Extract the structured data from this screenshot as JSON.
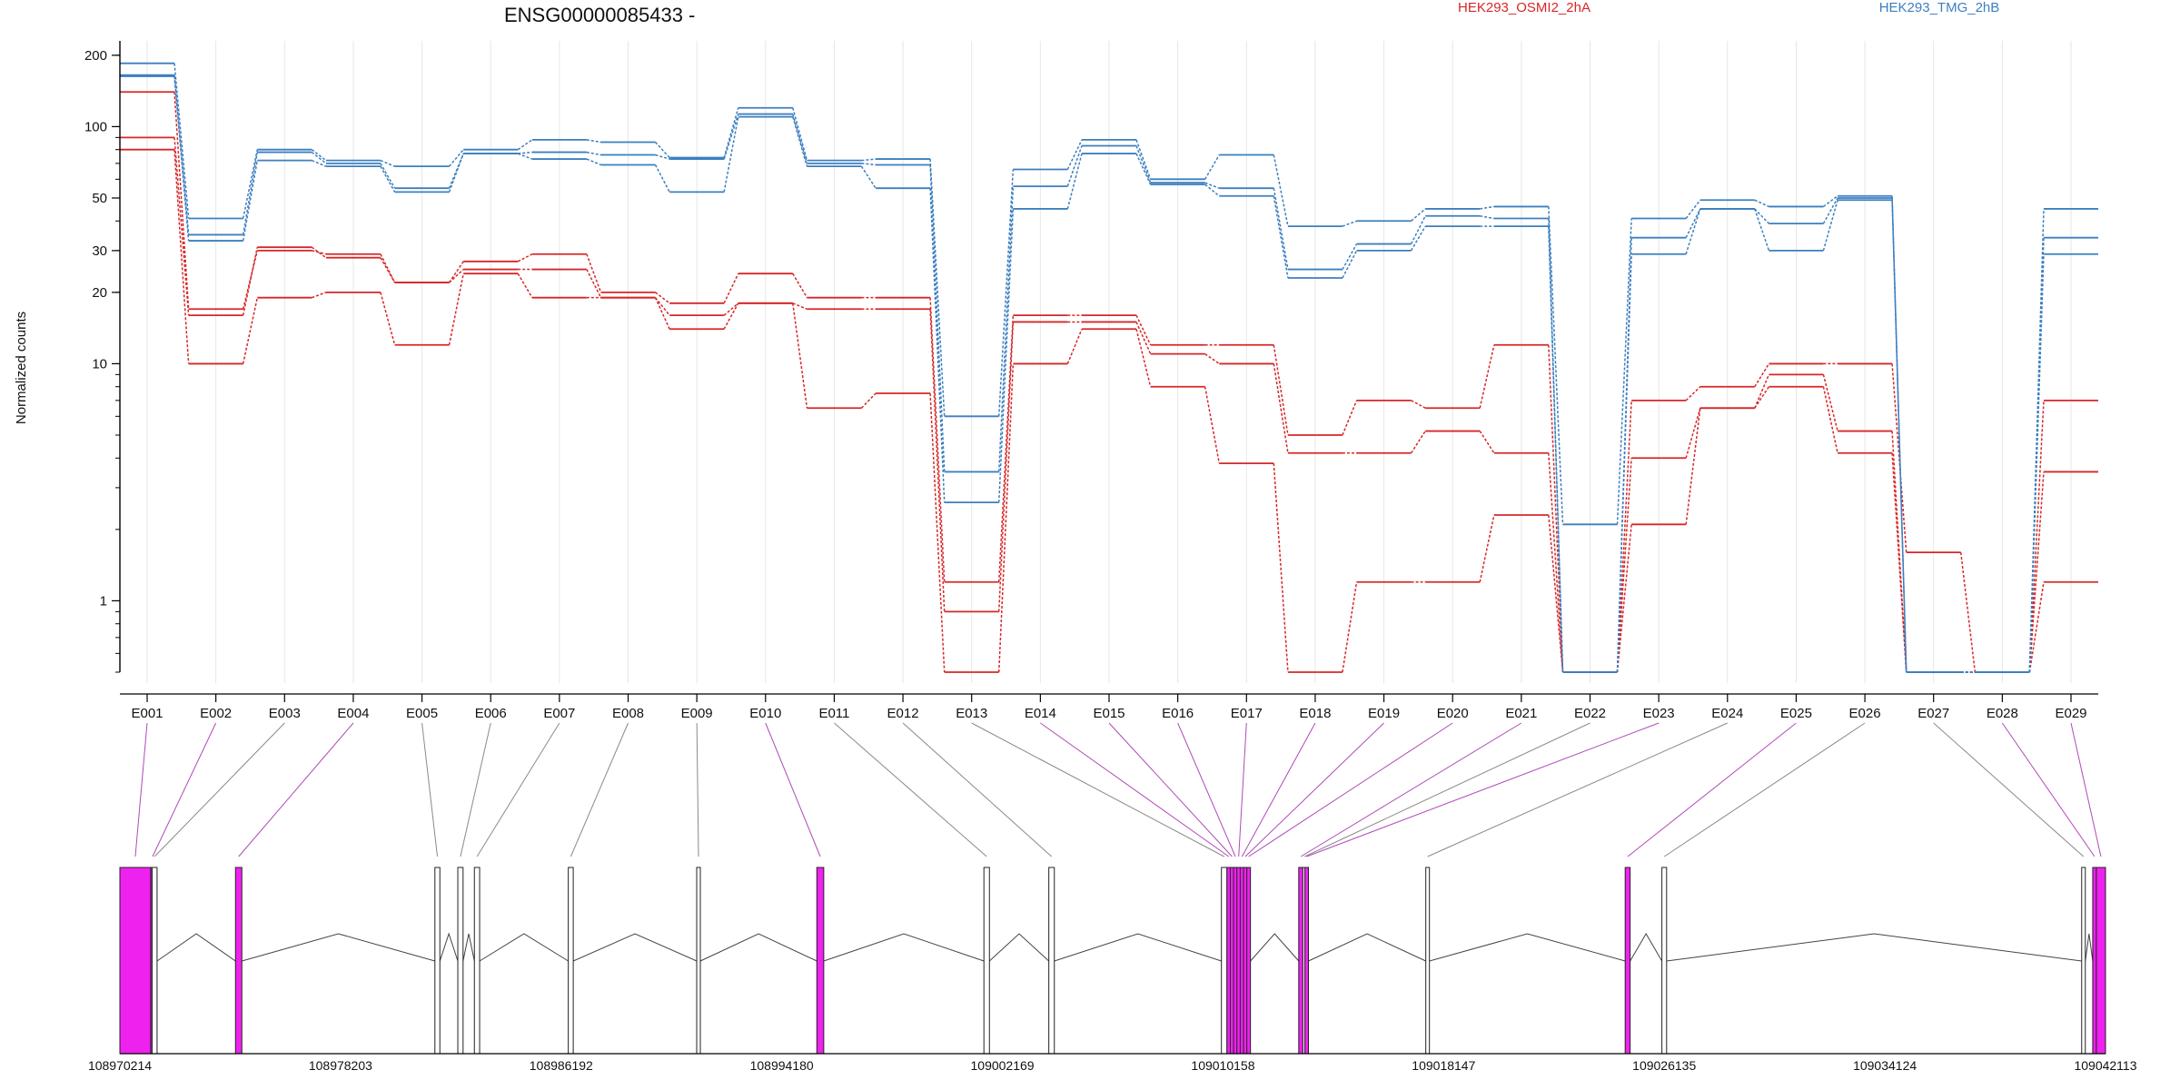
{
  "chart_data": {
    "type": "line",
    "title": "ENSG00000085433 -",
    "ylabel": "Normalized counts",
    "y_scale": "log",
    "ylim": [
      0.5,
      230
    ],
    "yticks": [
      1,
      10,
      20,
      30,
      50,
      100,
      200
    ],
    "ytick_labels": [
      "1",
      "10",
      "20",
      "30",
      "50",
      "100",
      "200"
    ],
    "grid": "vertical lines at each exon",
    "legend_position": "top-right",
    "categories": [
      "E001",
      "E002",
      "E003",
      "E004",
      "E005",
      "E006",
      "E007",
      "E008",
      "E009",
      "E010",
      "E011",
      "E012",
      "E013",
      "E014",
      "E015",
      "E016",
      "E017",
      "E018",
      "E019",
      "E020",
      "E021",
      "E022",
      "E023",
      "E024",
      "E025",
      "E026",
      "E027",
      "E028",
      "E029"
    ],
    "series": [
      {
        "name": "HEK293_OSMI2_2hA",
        "color": "#d62728",
        "values": [
          140,
          17,
          30,
          29,
          22,
          27,
          29,
          20,
          18,
          24,
          19,
          19,
          1.2,
          16,
          16,
          12,
          12,
          5,
          7,
          6.5,
          12,
          0.5,
          7,
          8,
          10,
          10,
          1.6,
          0.5,
          7
        ]
      },
      {
        "name": "HEK293_OSMI2_2hA",
        "color": "#d62728",
        "values": [
          90,
          16,
          31,
          28,
          22,
          25,
          25,
          19,
          16,
          18,
          17,
          17,
          0.9,
          15,
          15,
          11,
          10,
          4.2,
          4.2,
          5.2,
          4.2,
          0.5,
          4,
          6.5,
          9,
          5.2,
          0.5,
          0.5,
          3.5
        ]
      },
      {
        "name": "HEK293_OSMI2_2hA",
        "color": "#d62728",
        "values": [
          80,
          10,
          19,
          20,
          12,
          24,
          19,
          19,
          14,
          18,
          6.5,
          7.5,
          0.5,
          10,
          14,
          8,
          3.8,
          0.5,
          1.2,
          1.2,
          2.3,
          0.5,
          2.1,
          6.5,
          8,
          4.2,
          0.5,
          0.5,
          1.2
        ]
      },
      {
        "name": "HEK293_TMG_2hB",
        "color": "#3c7fbf",
        "values": [
          185,
          41,
          80,
          72,
          68,
          80,
          88,
          86,
          74,
          120,
          72,
          73,
          6,
          66,
          88,
          60,
          76,
          38,
          40,
          45,
          46,
          2.1,
          41,
          49,
          46,
          51,
          0.5,
          0.5,
          45
        ]
      },
      {
        "name": "HEK293_TMG_2hB",
        "color": "#3c7fbf",
        "values": [
          165,
          35,
          78,
          70,
          55,
          77,
          78,
          76,
          73,
          113,
          70,
          69,
          3.5,
          56,
          83,
          58,
          55,
          25,
          32,
          42,
          41,
          0.5,
          34,
          45,
          39,
          50,
          0.5,
          0.5,
          34
        ]
      },
      {
        "name": "HEK293_TMG_2hB",
        "color": "#3c7fbf",
        "values": [
          163,
          33,
          72,
          68,
          53,
          77,
          73,
          69,
          53,
          110,
          68,
          55,
          2.6,
          45,
          77,
          57,
          51,
          23,
          30,
          38,
          38,
          0.5,
          29,
          45,
          30,
          49,
          0.5,
          0.5,
          29
        ]
      }
    ],
    "legend": [
      {
        "label": "HEK293_OSMI2_2hA",
        "color": "#d62728"
      },
      {
        "label": "HEK293_TMG_2hB",
        "color": "#3c7fbf"
      }
    ],
    "gene_model": {
      "coord_range": [
        108970214,
        109042113
      ],
      "coord_ticks": [
        108970214,
        108978203,
        108986192,
        108994180,
        109002169,
        109010158,
        109018147,
        109026135,
        109034124,
        109042113
      ],
      "coord_tick_labels": [
        "108970214",
        "108978203",
        "108986192",
        "108994180",
        "109002169",
        "109010158",
        "109018147",
        "109026135",
        "109034124",
        "109042113"
      ],
      "highlight_color": "#ee22ee",
      "exons": [
        {
          "id": "E001",
          "start": 108970214,
          "end": 108971330,
          "highlight": true
        },
        {
          "id": "E002",
          "start": 108971330,
          "end": 108971380,
          "highlight": true
        },
        {
          "id": "E003",
          "start": 108971380,
          "end": 108971560,
          "highlight": false
        },
        {
          "id": "E004",
          "start": 108974400,
          "end": 108974630,
          "highlight": true
        },
        {
          "id": "E005",
          "start": 108981620,
          "end": 108981800,
          "highlight": false
        },
        {
          "id": "E006",
          "start": 108982450,
          "end": 108982640,
          "highlight": false
        },
        {
          "id": "E007",
          "start": 108983050,
          "end": 108983240,
          "highlight": false
        },
        {
          "id": "E008",
          "start": 108986450,
          "end": 108986630,
          "highlight": false
        },
        {
          "id": "E009",
          "start": 108991100,
          "end": 108991200,
          "highlight": false
        },
        {
          "id": "E010",
          "start": 108995450,
          "end": 108995700,
          "highlight": true
        },
        {
          "id": "E011",
          "start": 109001500,
          "end": 109001700,
          "highlight": false
        },
        {
          "id": "E012",
          "start": 109003850,
          "end": 109004050,
          "highlight": false
        },
        {
          "id": "E013",
          "start": 109010100,
          "end": 109010300,
          "highlight": false
        },
        {
          "id": "E014",
          "start": 109010300,
          "end": 109010420,
          "highlight": true
        },
        {
          "id": "E015",
          "start": 109010420,
          "end": 109010540,
          "highlight": true
        },
        {
          "id": "E016",
          "start": 109010540,
          "end": 109010660,
          "highlight": true
        },
        {
          "id": "E017",
          "start": 109010660,
          "end": 109010780,
          "highlight": true
        },
        {
          "id": "E018",
          "start": 109010780,
          "end": 109010900,
          "highlight": true
        },
        {
          "id": "E019",
          "start": 109010900,
          "end": 109011020,
          "highlight": true
        },
        {
          "id": "E020",
          "start": 109011020,
          "end": 109011140,
          "highlight": true
        },
        {
          "id": "E021",
          "start": 109012900,
          "end": 109013050,
          "highlight": true
        },
        {
          "id": "E022",
          "start": 109013050,
          "end": 109013120,
          "highlight": false
        },
        {
          "id": "E023",
          "start": 109013120,
          "end": 109013200,
          "highlight": true
        },
        {
          "id": "E024",
          "start": 109017500,
          "end": 109017600,
          "highlight": false
        },
        {
          "id": "E025",
          "start": 109024720,
          "end": 109024900,
          "highlight": true
        },
        {
          "id": "E026",
          "start": 109026050,
          "end": 109026220,
          "highlight": false
        },
        {
          "id": "E027",
          "start": 109041250,
          "end": 109041350,
          "highlight": false
        },
        {
          "id": "E028",
          "start": 109041650,
          "end": 109041780,
          "highlight": true
        },
        {
          "id": "E029",
          "start": 109041780,
          "end": 109042113,
          "highlight": true
        }
      ]
    }
  }
}
